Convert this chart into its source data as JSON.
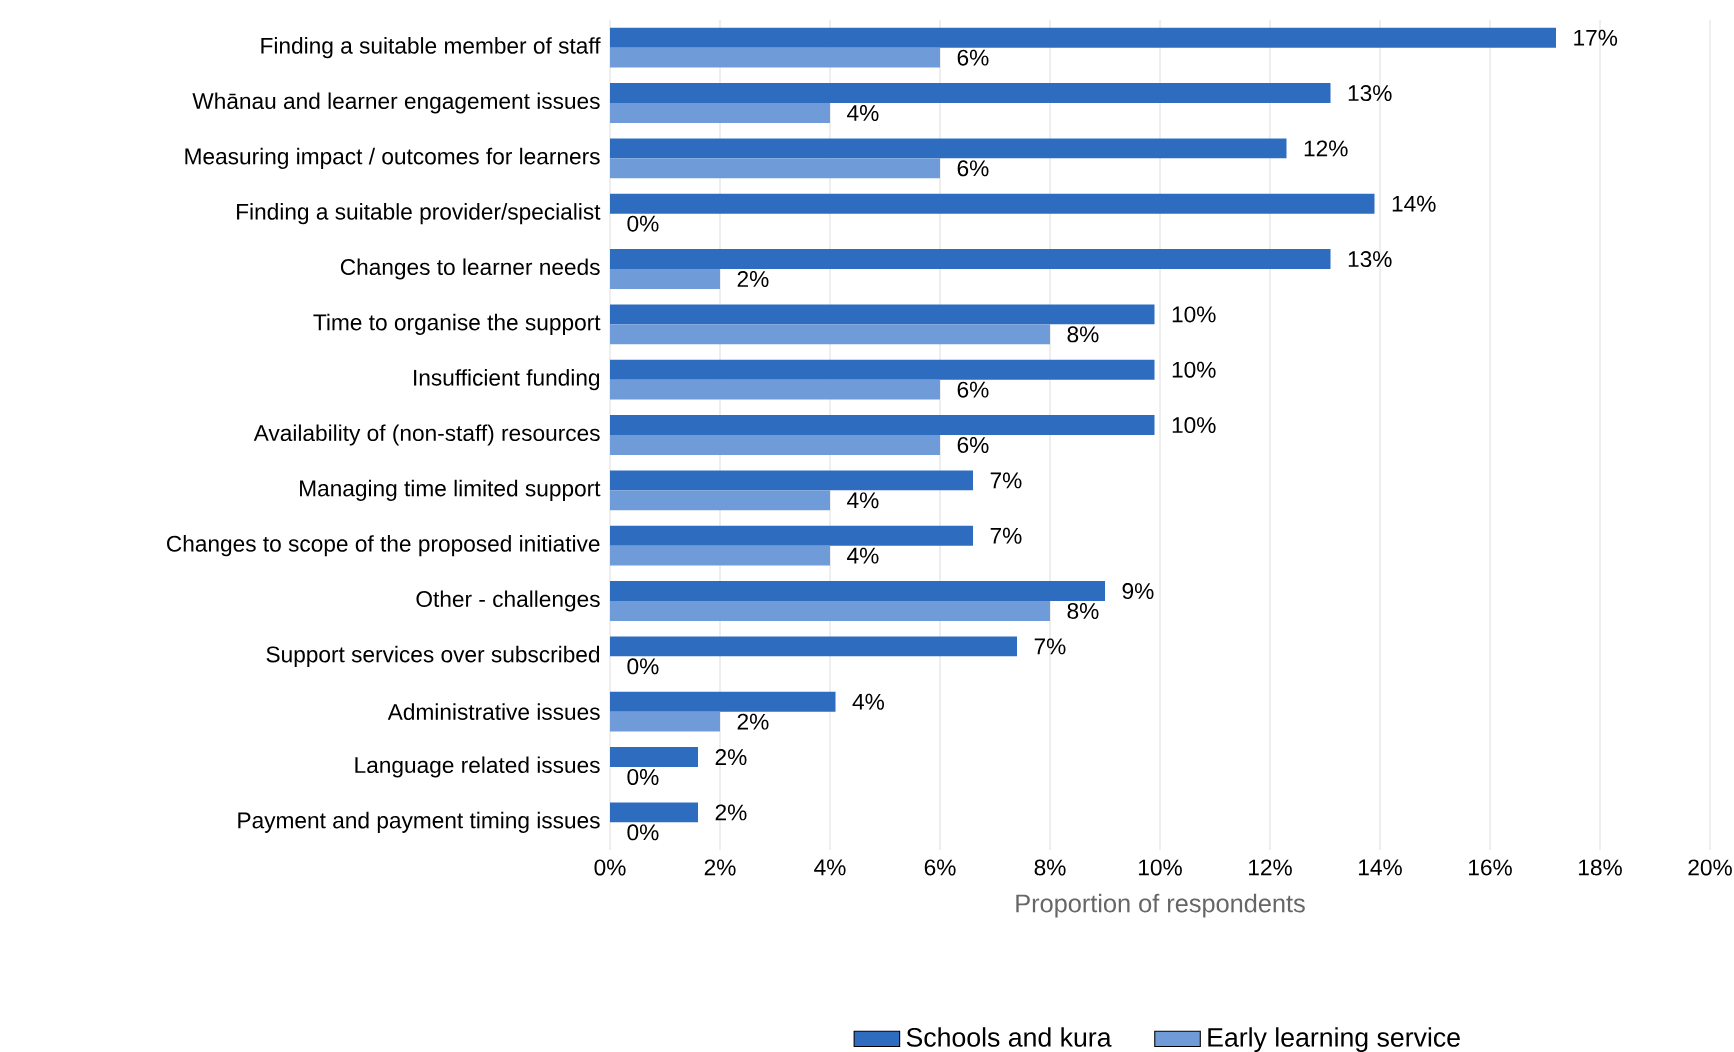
{
  "chart_data": {
    "type": "bar",
    "orientation": "horizontal",
    "categories": [
      "Finding a suitable member of staff",
      "Whānau and learner engagement issues",
      "Measuring impact / outcomes for learners",
      "Finding a suitable provider/specialist",
      "Changes to learner needs",
      "Time to organise the support",
      "Insufficient funding",
      "Availability of (non-staff) resources",
      "Managing time limited support",
      "Changes to scope of the proposed initiative",
      "Other - challenges",
      "Support services over subscribed",
      "Administrative issues",
      "Language related issues",
      "Payment and payment timing issues"
    ],
    "series": [
      {
        "name": "Schools and kura",
        "color": "#2e6cbf",
        "values": [
          17.2,
          13.1,
          12.3,
          13.9,
          13.1,
          9.9,
          9.9,
          9.9,
          6.6,
          6.6,
          9.0,
          7.4,
          4.1,
          1.6,
          1.6
        ],
        "value_labels": [
          "17%",
          "13%",
          "12%",
          "14%",
          "13%",
          "10%",
          "10%",
          "10%",
          "7%",
          "7%",
          "9%",
          "7%",
          "4%",
          "2%",
          "2%"
        ]
      },
      {
        "name": "Early learning service",
        "color": "#6f9bd9",
        "values": [
          6.0,
          4.0,
          6.0,
          0,
          2.0,
          8.0,
          6.0,
          6.0,
          4.0,
          4.0,
          8.0,
          0,
          2.0,
          0,
          0
        ],
        "value_labels": [
          "6%",
          "4%",
          "6%",
          "0%",
          "2%",
          "8%",
          "6%",
          "6%",
          "4%",
          "4%",
          "8%",
          "0%",
          "2%",
          "0%",
          "0%"
        ]
      }
    ],
    "xlabel": "Proportion of respondents",
    "xlim": [
      0,
      20
    ],
    "xticks": [
      {
        "value": 0,
        "label": "0%"
      },
      {
        "value": 2,
        "label": "2%"
      },
      {
        "value": 4,
        "label": "4%"
      },
      {
        "value": 6,
        "label": "6%"
      },
      {
        "value": 8,
        "label": "8%"
      },
      {
        "value": 10,
        "label": "10%"
      },
      {
        "value": 12,
        "label": "12%"
      },
      {
        "value": 14,
        "label": "14%"
      },
      {
        "value": 16,
        "label": "16%"
      },
      {
        "value": 18,
        "label": "18%"
      },
      {
        "value": 20,
        "label": "20%"
      }
    ],
    "grid": "x",
    "legend": "bottom"
  }
}
